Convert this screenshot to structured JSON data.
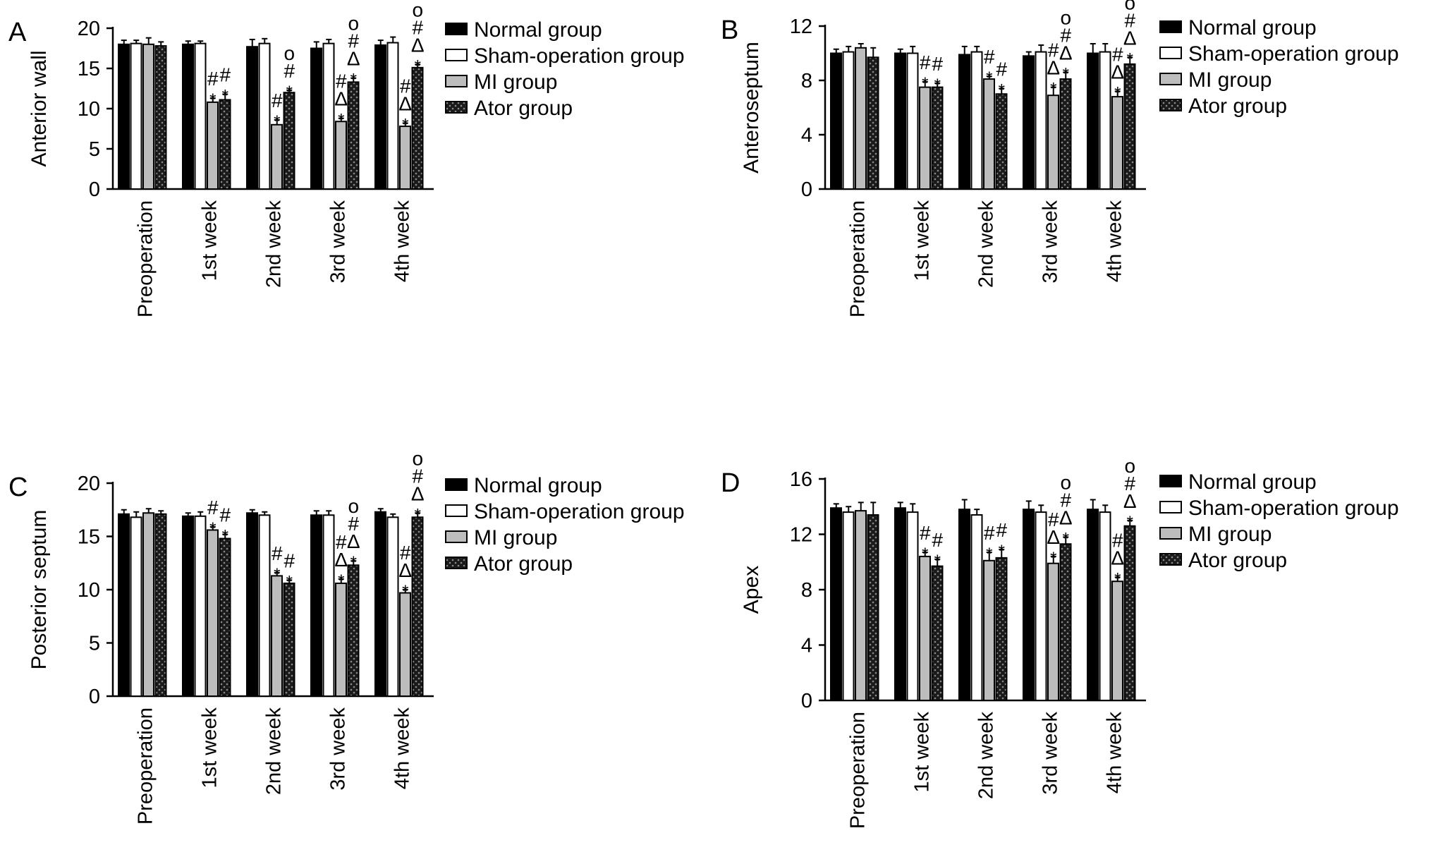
{
  "colors": {
    "normal": "#000000",
    "sham": "#ffffff",
    "mi": "#bdbdbd",
    "ator": "#1a1a1a"
  },
  "chart_data": [
    {
      "panel": "A",
      "type": "bar",
      "ylabel": "Anterior wall",
      "ylim": [
        0,
        20
      ],
      "yticks": [
        "0",
        "5",
        "10",
        "15",
        "20"
      ],
      "categories": [
        "Preoperation",
        "1st week",
        "2nd week",
        "3rd week",
        "4th week"
      ],
      "series": [
        {
          "name": "Normal group",
          "values": [
            18.0,
            18.0,
            17.7,
            17.5,
            17.9
          ],
          "errors": [
            0.5,
            0.4,
            0.9,
            0.8,
            0.6
          ]
        },
        {
          "name": "Sham-operation group",
          "values": [
            18.1,
            18.1,
            18.1,
            18.1,
            18.2
          ],
          "errors": [
            0.4,
            0.3,
            0.6,
            0.5,
            0.7
          ]
        },
        {
          "name": "MI group",
          "values": [
            18.0,
            10.8,
            8.0,
            8.4,
            7.8
          ],
          "errors": [
            0.8,
            0.5,
            0.6,
            0.4,
            0.4
          ]
        },
        {
          "name": "Ator group",
          "values": [
            17.8,
            11.1,
            12.0,
            13.3,
            15.1
          ],
          "errors": [
            0.5,
            0.7,
            0.3,
            0.5,
            0.4
          ]
        }
      ],
      "annotations": [
        {
          "cat": 1,
          "series": 2,
          "symbols": [
            "#",
            "*"
          ]
        },
        {
          "cat": 1,
          "series": 3,
          "symbols": [
            "#",
            "*"
          ]
        },
        {
          "cat": 2,
          "series": 2,
          "symbols": [
            "#",
            "*"
          ]
        },
        {
          "cat": 2,
          "series": 3,
          "symbols": [
            "o",
            "#",
            "*"
          ]
        },
        {
          "cat": 3,
          "series": 2,
          "symbols": [
            "#",
            "Δ",
            "*"
          ]
        },
        {
          "cat": 3,
          "series": 3,
          "symbols": [
            "o",
            "#",
            "Δ",
            "*"
          ]
        },
        {
          "cat": 4,
          "series": 2,
          "symbols": [
            "#",
            "Δ",
            "*"
          ]
        },
        {
          "cat": 4,
          "series": 3,
          "symbols": [
            "o",
            "#",
            "Δ",
            "*"
          ]
        }
      ]
    },
    {
      "panel": "B",
      "type": "bar",
      "ylabel": "Anteroseptum",
      "ylim": [
        0,
        12
      ],
      "yticks": [
        "0",
        "4",
        "8",
        "12"
      ],
      "categories": [
        "Preoperation",
        "1st week",
        "2nd week",
        "3rd week",
        "4th week"
      ],
      "series": [
        {
          "name": "Normal group",
          "values": [
            10.0,
            10.0,
            9.9,
            9.8,
            10.0
          ],
          "errors": [
            0.3,
            0.3,
            0.6,
            0.3,
            0.7
          ]
        },
        {
          "name": "Sham-operation group",
          "values": [
            10.1,
            10.0,
            10.1,
            10.1,
            10.1
          ],
          "errors": [
            0.4,
            0.5,
            0.4,
            0.5,
            0.6
          ]
        },
        {
          "name": "MI group",
          "values": [
            10.4,
            7.5,
            8.1,
            6.9,
            6.8
          ],
          "errors": [
            0.3,
            0.4,
            0.2,
            0.6,
            0.4
          ]
        },
        {
          "name": "Ator group",
          "values": [
            9.7,
            7.5,
            7.0,
            8.1,
            9.2
          ],
          "errors": [
            0.7,
            0.3,
            0.4,
            0.5,
            0.5
          ]
        }
      ],
      "annotations": [
        {
          "cat": 1,
          "series": 2,
          "symbols": [
            "#",
            "*"
          ]
        },
        {
          "cat": 1,
          "series": 3,
          "symbols": [
            "#",
            "*"
          ]
        },
        {
          "cat": 2,
          "series": 2,
          "symbols": [
            "#",
            "*"
          ]
        },
        {
          "cat": 2,
          "series": 3,
          "symbols": [
            "#",
            "*"
          ]
        },
        {
          "cat": 3,
          "series": 2,
          "symbols": [
            "#",
            "Δ",
            "*"
          ]
        },
        {
          "cat": 3,
          "series": 3,
          "symbols": [
            "o",
            "#",
            "Δ",
            "*"
          ]
        },
        {
          "cat": 4,
          "series": 2,
          "symbols": [
            "#",
            "Δ",
            "*"
          ]
        },
        {
          "cat": 4,
          "series": 3,
          "symbols": [
            "o",
            "#",
            "Δ",
            "*"
          ]
        }
      ]
    },
    {
      "panel": "C",
      "type": "bar",
      "ylabel": "Posterior septum",
      "ylim": [
        0,
        20
      ],
      "yticks": [
        "0",
        "5",
        "10",
        "15",
        "20"
      ],
      "categories": [
        "Preoperation",
        "1st week",
        "2nd week",
        "3rd week",
        "4th week"
      ],
      "series": [
        {
          "name": "Normal group",
          "values": [
            17.1,
            16.9,
            17.2,
            17.0,
            17.3
          ],
          "errors": [
            0.4,
            0.3,
            0.3,
            0.4,
            0.3
          ]
        },
        {
          "name": "Sham-operation group",
          "values": [
            16.8,
            16.9,
            17.0,
            17.0,
            16.8
          ],
          "errors": [
            0.5,
            0.4,
            0.3,
            0.4,
            0.3
          ]
        },
        {
          "name": "MI group",
          "values": [
            17.2,
            15.6,
            11.3,
            10.6,
            9.7
          ],
          "errors": [
            0.4,
            0.3,
            0.3,
            0.4,
            0.3
          ]
        },
        {
          "name": "Ator group",
          "values": [
            17.1,
            14.8,
            10.6,
            12.3,
            16.8
          ],
          "errors": [
            0.3,
            0.4,
            0.3,
            0.4,
            0.4
          ]
        }
      ],
      "annotations": [
        {
          "cat": 1,
          "series": 2,
          "symbols": [
            "#",
            "*"
          ]
        },
        {
          "cat": 1,
          "series": 3,
          "symbols": [
            "#",
            "*"
          ]
        },
        {
          "cat": 2,
          "series": 2,
          "symbols": [
            "#",
            "*"
          ]
        },
        {
          "cat": 2,
          "series": 3,
          "symbols": [
            "#",
            "*"
          ]
        },
        {
          "cat": 3,
          "series": 2,
          "symbols": [
            "#",
            "Δ",
            "*"
          ]
        },
        {
          "cat": 3,
          "series": 3,
          "symbols": [
            "o",
            "#",
            "Δ",
            "*"
          ]
        },
        {
          "cat": 4,
          "series": 2,
          "symbols": [
            "#",
            "Δ",
            "*"
          ]
        },
        {
          "cat": 4,
          "series": 3,
          "symbols": [
            "o",
            "#",
            "Δ",
            "*"
          ]
        }
      ]
    },
    {
      "panel": "D",
      "type": "bar",
      "ylabel": "Apex",
      "ylim": [
        0,
        16
      ],
      "yticks": [
        "0",
        "4",
        "8",
        "12",
        "16"
      ],
      "categories": [
        "Preoperation",
        "1st week",
        "2nd week",
        "3rd week",
        "4th week"
      ],
      "series": [
        {
          "name": "Normal group",
          "values": [
            13.9,
            13.9,
            13.8,
            13.8,
            13.8
          ],
          "errors": [
            0.3,
            0.4,
            0.7,
            0.6,
            0.7
          ]
        },
        {
          "name": "Sham-operation group",
          "values": [
            13.6,
            13.6,
            13.4,
            13.6,
            13.6
          ],
          "errors": [
            0.4,
            0.6,
            0.4,
            0.5,
            0.5
          ]
        },
        {
          "name": "MI group",
          "values": [
            13.7,
            10.4,
            10.1,
            9.9,
            8.6
          ],
          "errors": [
            0.6,
            0.3,
            0.6,
            0.5,
            0.3
          ]
        },
        {
          "name": "Ator group",
          "values": [
            13.4,
            9.7,
            10.3,
            11.3,
            12.6
          ],
          "errors": [
            0.9,
            0.5,
            0.6,
            0.5,
            0.4
          ]
        }
      ],
      "annotations": [
        {
          "cat": 1,
          "series": 2,
          "symbols": [
            "#",
            "*"
          ]
        },
        {
          "cat": 1,
          "series": 3,
          "symbols": [
            "#",
            "*"
          ]
        },
        {
          "cat": 2,
          "series": 2,
          "symbols": [
            "#",
            "*"
          ]
        },
        {
          "cat": 2,
          "series": 3,
          "symbols": [
            "#",
            "*"
          ]
        },
        {
          "cat": 3,
          "series": 2,
          "symbols": [
            "#",
            "Δ",
            "*"
          ]
        },
        {
          "cat": 3,
          "series": 3,
          "symbols": [
            "o",
            "#",
            "Δ",
            "*"
          ]
        },
        {
          "cat": 4,
          "series": 2,
          "symbols": [
            "#",
            "Δ",
            "*"
          ]
        },
        {
          "cat": 4,
          "series": 3,
          "symbols": [
            "o",
            "#",
            "Δ",
            "*"
          ]
        }
      ]
    }
  ]
}
